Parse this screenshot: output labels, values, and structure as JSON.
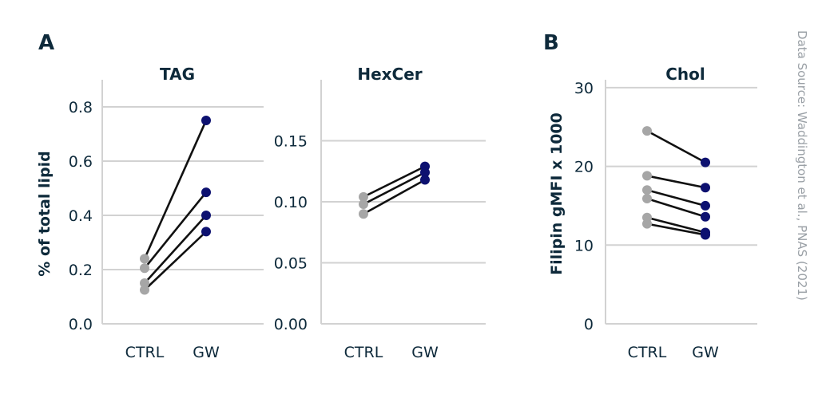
{
  "source_note": "Data Source: Waddington et al., PNAS (2021)",
  "colors": {
    "ctrl_point": "#a6a6a6",
    "gw_point": "#0d1170",
    "line": "#111111",
    "text": "#0e2a3b",
    "axis": "#d2d2d2"
  },
  "chart_data": [
    {
      "panel": "A",
      "type": "scatter",
      "title": "TAG",
      "ylabel": "% of total lipid",
      "categories": [
        "CTRL",
        "GW"
      ],
      "ylim": [
        0,
        0.9
      ],
      "yticks": [
        0,
        0.2,
        0.4,
        0.6,
        0.8
      ],
      "ytick_labels": [
        "0.0",
        "0.2",
        "0.4",
        "0.6",
        "0.8"
      ],
      "pairs": [
        [
          0.24,
          0.75
        ],
        [
          0.205,
          0.485
        ],
        [
          0.15,
          0.4
        ],
        [
          0.125,
          0.34
        ]
      ]
    },
    {
      "panel": "",
      "type": "scatter",
      "title": "HexCer",
      "ylabel": "",
      "categories": [
        "CTRL",
        "GW"
      ],
      "ylim": [
        0,
        0.2
      ],
      "yticks": [
        0,
        0.05,
        0.1,
        0.15
      ],
      "ytick_labels": [
        "0.00",
        "0.05",
        "0.10",
        "0.15"
      ],
      "pairs": [
        [
          0.104,
          0.129
        ],
        [
          0.098,
          0.124
        ],
        [
          0.09,
          0.118
        ]
      ]
    },
    {
      "panel": "B",
      "type": "scatter",
      "title": "Chol",
      "ylabel": "Filipin gMFI x 1000",
      "categories": [
        "CTRL",
        "GW"
      ],
      "ylim": [
        0,
        31
      ],
      "yticks": [
        0,
        10,
        20,
        30
      ],
      "ytick_labels": [
        "0",
        "10",
        "20",
        "30"
      ],
      "pairs": [
        [
          24.5,
          20.5
        ],
        [
          18.8,
          17.3
        ],
        [
          17.0,
          15.0
        ],
        [
          15.9,
          13.6
        ],
        [
          13.5,
          11.6
        ],
        [
          12.7,
          11.3
        ]
      ]
    }
  ]
}
